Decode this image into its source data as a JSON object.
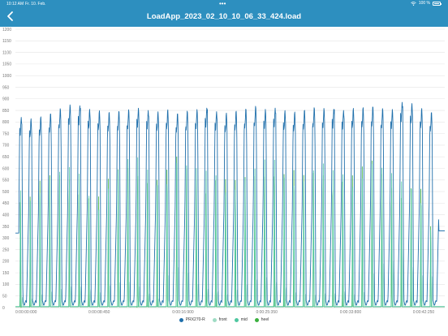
{
  "status_bar": {
    "time": "10:12 AM",
    "date": "Fr. 10. Feb.",
    "battery": "100 %",
    "icons": [
      "wifi-icon",
      "battery-icon"
    ]
  },
  "header": {
    "title": "LoadApp_2023_02_10_10_06_33_424.load",
    "back_icon": "chevron-left-icon"
  },
  "colors": {
    "header": "#2d8fbf",
    "PRX270-R": "#1f6fab",
    "front": "#9fdcc4",
    "mid": "#4fc7a0",
    "heel": "#3ab03e"
  },
  "chart_data": {
    "type": "line",
    "title": "",
    "xlabel": "",
    "ylabel": "",
    "ylim": [
      0,
      1200
    ],
    "y_ticks": [
      "0",
      "50",
      "100",
      "150",
      "200",
      "250",
      "300",
      "350",
      "400",
      "450",
      "500",
      "550",
      "600",
      "650",
      "700",
      "750",
      "800",
      "850",
      "900",
      "950",
      "1000",
      "1050",
      "1100",
      "1150",
      "1200"
    ],
    "x_ticks": [
      "0:00:00:000",
      "0:00:08:450",
      "0:00:16:900",
      "0:00:25:350",
      "0:00:33:800",
      "0:00:42:250"
    ],
    "x_range_seconds": [
      0,
      43.3
    ],
    "grid": true,
    "legend_position": "bottom",
    "stride_count": 43,
    "stride_period_seconds": 0.985,
    "peak_values": {
      "PRX270-R": [
        820,
        815,
        825,
        840,
        860,
        875,
        870,
        855,
        850,
        845,
        850,
        855,
        860,
        850,
        845,
        855,
        840,
        850,
        855,
        860,
        845,
        840,
        850,
        860,
        870,
        855,
        860,
        850,
        845,
        855,
        865,
        860,
        855,
        850,
        860,
        865,
        870,
        860,
        855,
        885,
        880,
        860,
        845
      ],
      "front": [
        45,
        40,
        60,
        70,
        80,
        90,
        90,
        80,
        70,
        100,
        110,
        110,
        90,
        60,
        40,
        150,
        180,
        150,
        100,
        80,
        70,
        60,
        80,
        100,
        120,
        130,
        110,
        90,
        70,
        60,
        55,
        60,
        60,
        70,
        60,
        70,
        150,
        190,
        200,
        250,
        180,
        150,
        140
      ],
      "mid": [
        530,
        520,
        560,
        580,
        590,
        605,
        590,
        520,
        500,
        560,
        610,
        640,
        650,
        620,
        590,
        610,
        660,
        620,
        600,
        600,
        610,
        580,
        560,
        575,
        600,
        640,
        660,
        620,
        610,
        580,
        600,
        620,
        600,
        610,
        600,
        620,
        645,
        605,
        580,
        560,
        560,
        530,
        360
      ],
      "heel": [
        510,
        500,
        550,
        570,
        585,
        600,
        580,
        510,
        490,
        555,
        600,
        630,
        640,
        610,
        580,
        600,
        650,
        610,
        590,
        590,
        600,
        570,
        550,
        565,
        590,
        630,
        650,
        610,
        600,
        570,
        590,
        610,
        590,
        600,
        590,
        610,
        635,
        595,
        570,
        550,
        550,
        520,
        350
      ]
    },
    "series": [
      {
        "name": "PRX270-R",
        "color": "#1f6fab"
      },
      {
        "name": "front",
        "color": "#9fdcc4"
      },
      {
        "name": "mid",
        "color": "#4fc7a0"
      },
      {
        "name": "heel",
        "color": "#3ab03e"
      }
    ]
  }
}
